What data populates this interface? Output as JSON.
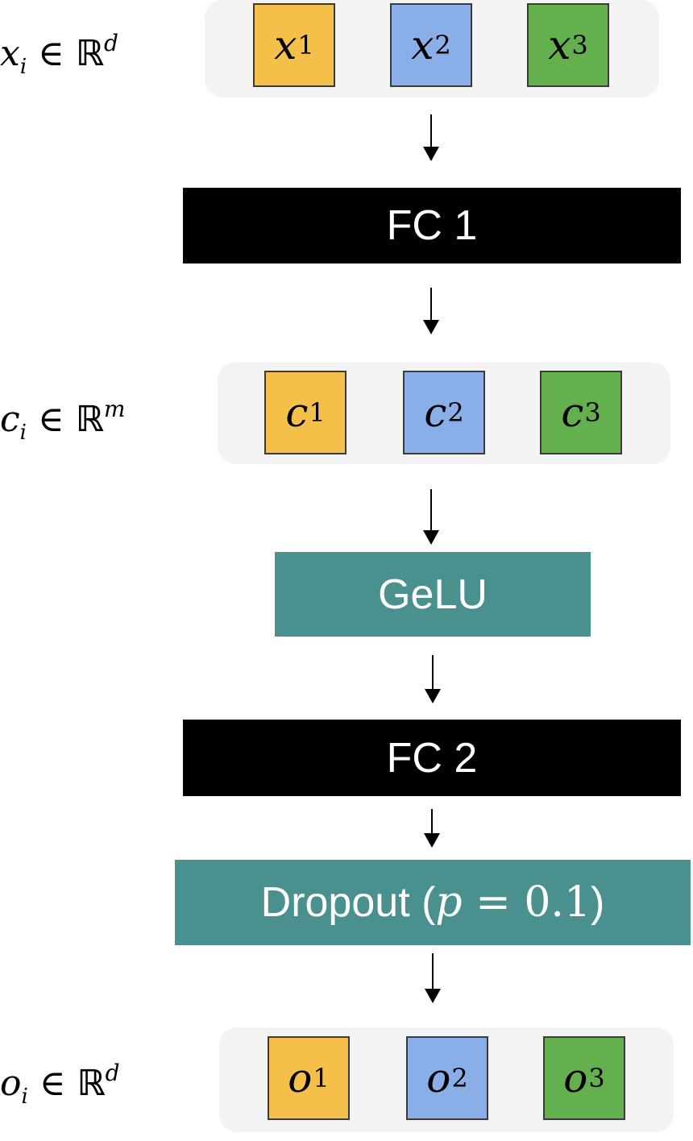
{
  "colors": {
    "yellow": "#f4c04a",
    "blue": "#8aaee8",
    "green": "#64b04e",
    "black_block": "#000000",
    "teal_block": "#4a908e",
    "group_bg": "#f3f3f3"
  },
  "input": {
    "var": "x",
    "sub": "i",
    "set": "ℝ",
    "dim": "d",
    "cells": [
      {
        "letter": "x",
        "index": "1"
      },
      {
        "letter": "x",
        "index": "2"
      },
      {
        "letter": "x",
        "index": "3"
      }
    ]
  },
  "fc1": {
    "label": "FC 1"
  },
  "hidden": {
    "var": "c",
    "sub": "i",
    "set": "ℝ",
    "dim": "m",
    "cells": [
      {
        "letter": "c",
        "index": "1"
      },
      {
        "letter": "c",
        "index": "2"
      },
      {
        "letter": "c",
        "index": "3"
      }
    ]
  },
  "gelu": {
    "label": "GeLU"
  },
  "fc2": {
    "label": "FC 2"
  },
  "dropout": {
    "label": "Dropout (",
    "param": "p",
    "eq": " = 0.1",
    "close": ")"
  },
  "output": {
    "var": "o",
    "sub": "i",
    "set": "ℝ",
    "dim": "d",
    "cells": [
      {
        "letter": "o",
        "index": "1"
      },
      {
        "letter": "o",
        "index": "2"
      },
      {
        "letter": "o",
        "index": "3"
      }
    ]
  }
}
